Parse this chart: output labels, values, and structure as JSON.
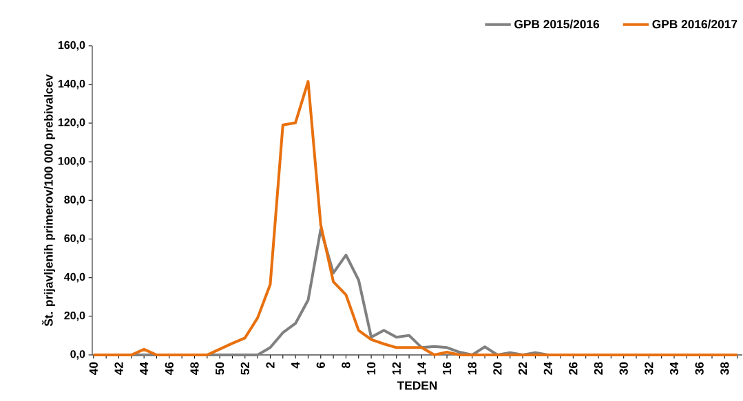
{
  "chart_data": {
    "type": "line",
    "xlabel": "TEDEN",
    "ylabel": "Št. prijavljenih primerov/100 000 prebivalcev",
    "categories": [
      "40",
      null,
      "42",
      null,
      "44",
      null,
      "46",
      null,
      "48",
      null,
      "50",
      null,
      "52",
      null,
      "2",
      null,
      "4",
      null,
      "6",
      null,
      "8",
      null,
      "10",
      null,
      "12",
      null,
      "14",
      null,
      "16",
      null,
      "18",
      null,
      "20",
      null,
      "22",
      null,
      "24",
      null,
      "26",
      null,
      "28",
      null,
      "30",
      null,
      "32",
      null,
      "34",
      null,
      "36",
      null,
      "38",
      null
    ],
    "series": [
      {
        "name": "GPB 2015/2016",
        "color": "#808080",
        "values": [
          0,
          0,
          0,
          0,
          0,
          0,
          0,
          0,
          0,
          0,
          0,
          0,
          0,
          0,
          3.8,
          11.5,
          16.3,
          28.4,
          65.0,
          42.4,
          51.7,
          38.8,
          9.2,
          12.7,
          9.2,
          10.1,
          3.8,
          4.4,
          3.8,
          1.4,
          0,
          4.2,
          0,
          1.2,
          0,
          1.2,
          0,
          0,
          0,
          0,
          0,
          0,
          0,
          0,
          0,
          0,
          0,
          0,
          0,
          0,
          0,
          0
        ]
      },
      {
        "name": "GPB 2016/2017",
        "color": "#e8700e",
        "values": [
          0,
          0,
          0,
          0,
          2.9,
          0,
          0,
          0,
          0,
          0,
          3.0,
          6.0,
          8.8,
          19.2,
          36.5,
          119.0,
          120.2,
          141.6,
          67.4,
          37.9,
          31.1,
          12.7,
          8.0,
          5.7,
          3.8,
          3.8,
          3.8,
          0,
          1.4,
          0,
          0,
          0,
          0,
          0,
          0,
          0,
          0,
          0,
          0,
          0,
          0,
          0,
          0,
          0,
          0,
          0,
          0,
          0,
          0,
          0,
          0,
          0
        ]
      }
    ],
    "ylim": [
      0,
      160
    ],
    "yticks": [
      {
        "value": 0,
        "label": "0,0"
      },
      {
        "value": 20,
        "label": "20,0"
      },
      {
        "value": 40,
        "label": "40,0"
      },
      {
        "value": 60,
        "label": "60,0"
      },
      {
        "value": 80,
        "label": "80,0"
      },
      {
        "value": 100,
        "label": "100,0"
      },
      {
        "value": 120,
        "label": "120,0"
      },
      {
        "value": 140,
        "label": "140,0"
      },
      {
        "value": 160,
        "label": "160,0"
      }
    ],
    "legend": "top right"
  }
}
